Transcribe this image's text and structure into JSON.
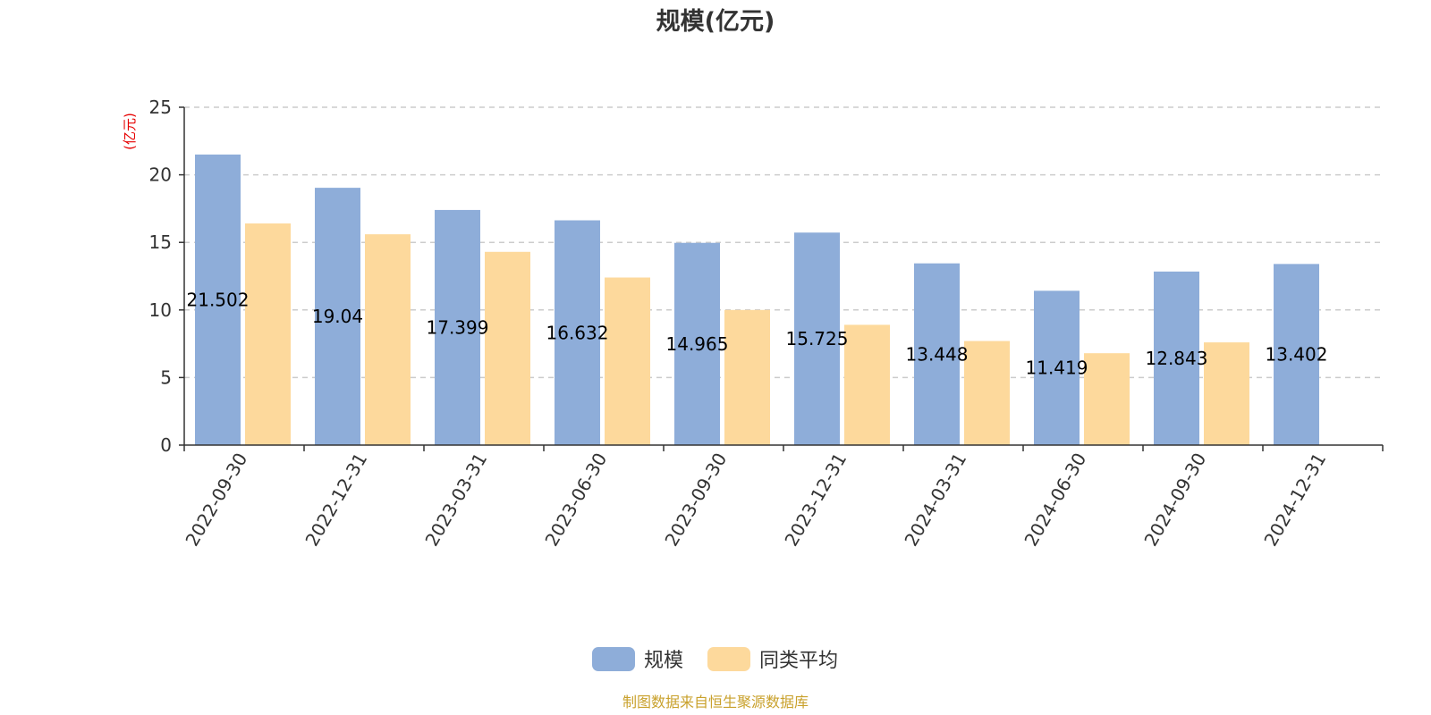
{
  "chart_data": {
    "type": "bar",
    "title": "规模(亿元)",
    "ylabel": "(亿元)",
    "xlabel": "",
    "ylim": [
      0,
      25
    ],
    "yticks": [
      0,
      5,
      10,
      15,
      20,
      25
    ],
    "grid": true,
    "legend_position": "bottom-center",
    "categories": [
      "2022-09-30",
      "2022-12-31",
      "2023-03-31",
      "2023-06-30",
      "2023-09-30",
      "2023-12-31",
      "2024-03-31",
      "2024-06-30",
      "2024-09-30",
      "2024-12-31"
    ],
    "series": [
      {
        "name": "规模",
        "color": "#8eadd9",
        "values": [
          21.502,
          19.04,
          17.399,
          16.632,
          14.965,
          15.725,
          13.448,
          11.419,
          12.843,
          13.402
        ],
        "labels": [
          "21.502",
          "19.04",
          "17.399",
          "16.632",
          "14.965",
          "15.725",
          "13.448",
          "11.419",
          "12.843",
          "13.402"
        ]
      },
      {
        "name": "同类平均",
        "color": "#fdd99c",
        "values": [
          16.4,
          15.6,
          14.3,
          12.4,
          10.0,
          8.9,
          7.7,
          6.8,
          7.6,
          null
        ]
      }
    ]
  },
  "source": "制图数据来自恒生聚源数据库"
}
